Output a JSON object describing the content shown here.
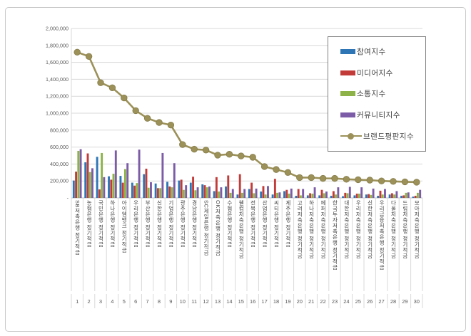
{
  "chart_data": {
    "type": "bar",
    "subtype": "grouped-bars-with-line-overlay",
    "categories": [
      "SB저축은행 정기적금",
      "농협은행 정기적금",
      "국민은행 정기적금",
      "하나은행 정기적금",
      "아이엠뱅크 정기적금",
      "우리은행 정기적금",
      "부산은행 정기적금",
      "신한은행 정기적금",
      "기업은행 정기적금",
      "광주은행 정기적금",
      "경남은행 정기적금",
      "SC제일은행 정기적금",
      "OK저축은행 정기적금",
      "수협은행 정기적금",
      "웰컴저축은행 정기적금",
      "전북은행 정기적금",
      "산업은행 정기적금",
      "씨티은행 정기적금",
      "제주은행 정기적금",
      "고려저축은행 정기적금",
      "하나저축은행 정기적금",
      "페퍼저축은행 정기적금",
      "한국투자저축은행 정기적금",
      "대한저축은행 정기적금",
      "우리저축은행 정기적금",
      "신한저축은행 정기적금",
      "우리금융저축은행 정기적금",
      "다올저축은행 정기적금",
      "드림저축은행 정기적금",
      "모아저축은행 정기적금"
    ],
    "rank_labels": [
      "1",
      "2",
      "3",
      "4",
      "5",
      "6",
      "7",
      "8",
      "9",
      "10",
      "11",
      "12",
      "13",
      "14",
      "15",
      "16",
      "17",
      "18",
      "19",
      "20",
      "21",
      "22",
      "23",
      "24",
      "25",
      "26",
      "27",
      "28",
      "29",
      "30"
    ],
    "series": [
      {
        "name": "참여지수",
        "kind": "bar",
        "color": "#2E75B6",
        "values": [
          205000,
          420000,
          485000,
          255000,
          260000,
          180000,
          280000,
          170000,
          190000,
          205000,
          180000,
          160000,
          80000,
          135000,
          40000,
          105000,
          75000,
          40000,
          80000,
          25000,
          30000,
          30000,
          25000,
          20000,
          30000,
          40000,
          25000,
          40000,
          25000,
          15000
        ]
      },
      {
        "name": "미디어지수",
        "kind": "bar",
        "color": "#C23B38",
        "values": [
          310000,
          525000,
          100000,
          215000,
          180000,
          145000,
          345000,
          115000,
          135000,
          215000,
          250000,
          150000,
          245000,
          265000,
          280000,
          180000,
          140000,
          225000,
          95000,
          105000,
          55000,
          95000,
          80000,
          60000,
          50000,
          45000,
          85000,
          55000,
          30000,
          25000
        ]
      },
      {
        "name": "소통지수",
        "kind": "bar",
        "color": "#8DB348",
        "values": [
          555000,
          305000,
          530000,
          285000,
          340000,
          175000,
          120000,
          115000,
          125000,
          95000,
          90000,
          125000,
          75000,
          60000,
          60000,
          55000,
          40000,
          60000,
          50000,
          30000,
          50000,
          55000,
          40000,
          55000,
          50000,
          35000,
          40000,
          40000,
          60000,
          60000
        ]
      },
      {
        "name": "커뮤니티지수",
        "kind": "bar",
        "color": "#7C5CA6",
        "values": [
          575000,
          350000,
          245000,
          560000,
          410000,
          570000,
          185000,
          530000,
          410000,
          150000,
          125000,
          135000,
          125000,
          105000,
          105000,
          110000,
          140000,
          65000,
          110000,
          105000,
          125000,
          75000,
          125000,
          130000,
          125000,
          110000,
          105000,
          80000,
          65000,
          95000
        ]
      },
      {
        "name": "브랜드평판지수",
        "kind": "line",
        "color": "#9C9159",
        "values": [
          1720000,
          1670000,
          1360000,
          1300000,
          1180000,
          1030000,
          940000,
          890000,
          860000,
          630000,
          575000,
          565000,
          505000,
          515000,
          495000,
          480000,
          370000,
          335000,
          300000,
          240000,
          240000,
          230000,
          230000,
          220000,
          215000,
          210000,
          200000,
          195000,
          190000,
          185000
        ]
      }
    ],
    "ylim": [
      0,
      2000000
    ],
    "ytick_interval": 200000,
    "ytick_labels": [
      "2,000,000",
      "1,800,000",
      "1,600,000",
      "1,400,000",
      "1,200,000",
      "1,000,000",
      "800,000",
      "600,000",
      "400,000",
      "200,000",
      "-"
    ],
    "grid": true,
    "legend_position": "top-right-inside",
    "colors": {
      "grid": "#d9d9d9",
      "axis": "#bfbfbf",
      "tick_text": "#595959",
      "label_text": "#444444",
      "legend_border": "#7f7f7f",
      "line_marker_stroke": "#857C49"
    }
  }
}
